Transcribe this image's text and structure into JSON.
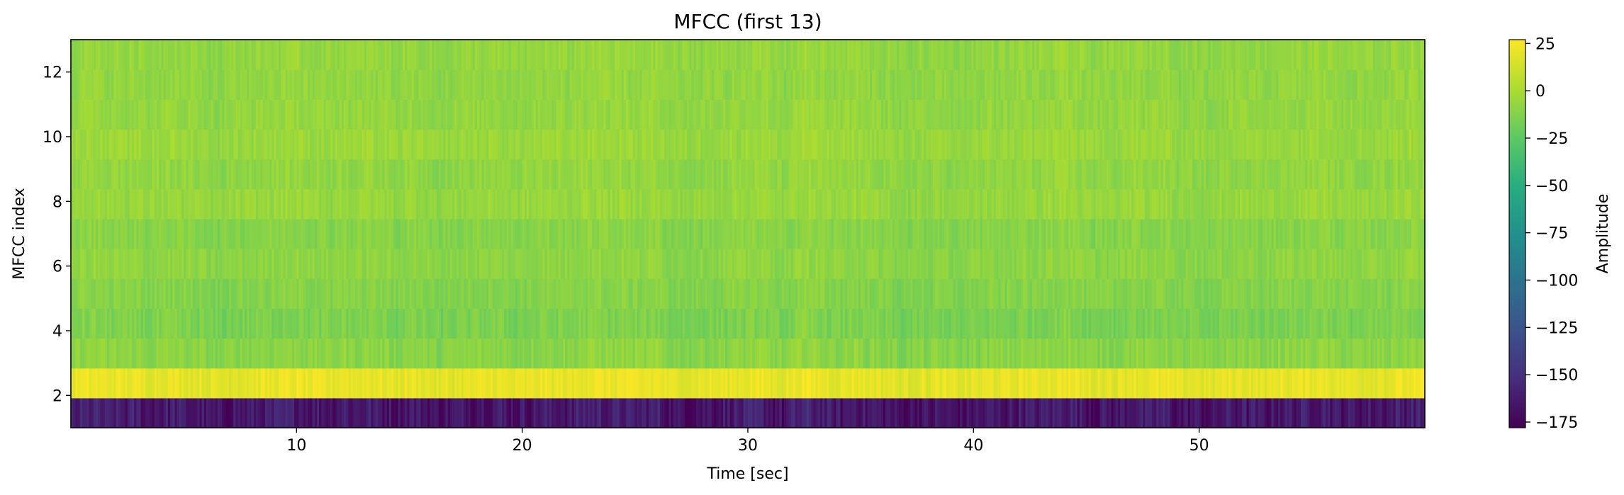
{
  "chart_data": {
    "type": "heatmap",
    "title": "MFCC (first 13)",
    "xlabel": "Time [sec]",
    "ylabel": "MFCC index",
    "colorbar_label": "Amplitude",
    "colormap": "viridis",
    "xlim": [
      0,
      60
    ],
    "ylim": [
      1,
      13
    ],
    "clim": [
      -178,
      27
    ],
    "x_ticks": [
      10,
      20,
      30,
      40,
      50
    ],
    "y_ticks": [
      2,
      4,
      6,
      8,
      10,
      12
    ],
    "colorbar_ticks": [
      25,
      0,
      -25,
      -50,
      -75,
      -100,
      -125,
      -150,
      -175
    ],
    "colorbar_tick_labels": [
      "25",
      "0",
      "−25",
      "−50",
      "−75",
      "−100",
      "−125",
      "−150",
      "−175"
    ],
    "frames": 600,
    "coefficients": [
      {
        "index": 1,
        "mean": -165,
        "spread": 12
      },
      {
        "index": 2,
        "mean": 20,
        "spread": 5
      },
      {
        "index": 3,
        "mean": -10,
        "spread": 6
      },
      {
        "index": 4,
        "mean": -15,
        "spread": 6
      },
      {
        "index": 5,
        "mean": -12,
        "spread": 5
      },
      {
        "index": 6,
        "mean": -9,
        "spread": 5
      },
      {
        "index": 7,
        "mean": -11,
        "spread": 5
      },
      {
        "index": 8,
        "mean": -6,
        "spread": 5
      },
      {
        "index": 9,
        "mean": -8,
        "spread": 5
      },
      {
        "index": 10,
        "mean": -5,
        "spread": 5
      },
      {
        "index": 11,
        "mean": -7,
        "spread": 5
      },
      {
        "index": 12,
        "mean": -8,
        "spread": 5
      },
      {
        "index": 13,
        "mean": -7,
        "spread": 5
      }
    ]
  }
}
